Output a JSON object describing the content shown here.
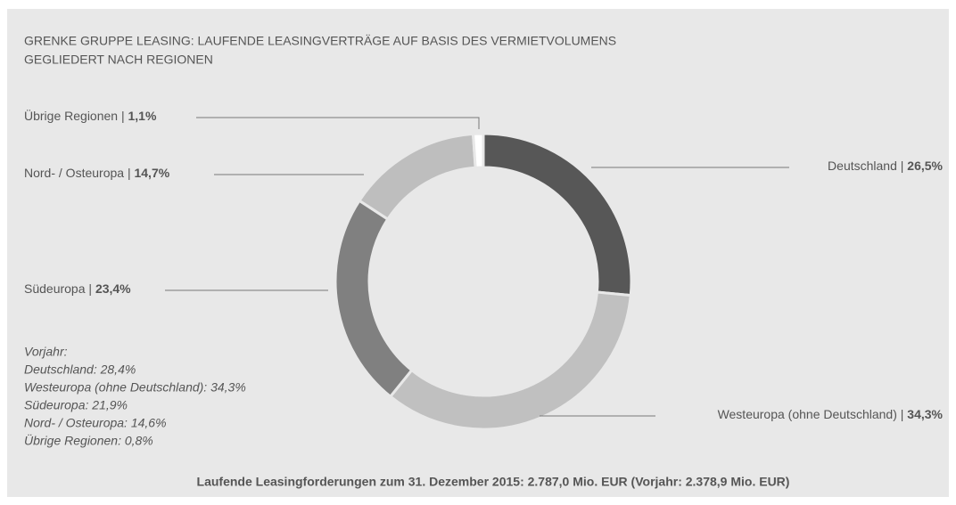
{
  "chart_data": {
    "type": "pie",
    "title": "GRENKE GRUPPE LEASING: LAUFENDE LEASINGVERTRÄGE AUF BASIS DES VERMIETVOLUMENS",
    "subtitle": "GEGLIEDERT NACH REGIONEN",
    "categories": [
      "Deutschland",
      "Westeuropa (ohne Deutschland)",
      "Südeuropa",
      "Nord- / Osteuropa",
      "Übrige Regionen"
    ],
    "values": [
      26.5,
      34.3,
      23.4,
      14.7,
      1.1
    ],
    "value_labels": [
      "26,5%",
      "34,3%",
      "23,4%",
      "14,7%",
      "1,1%"
    ],
    "colors": [
      "#575757",
      "#c0c0c0",
      "#808080",
      "#bebebe",
      "#ffffff"
    ],
    "label_separator": " | ",
    "donut": true,
    "annotations": [
      "Vorjahr:",
      "Deutschland: 28,4%",
      "Westeuropa (ohne Deutschland): 34,3%",
      "Südeuropa: 21,9%",
      "Nord- / Osteuropa: 14,6%",
      "Übrige Regionen: 0,8%"
    ],
    "caption": "Laufende Leasingforderungen zum 31. Dezember 2015: 2.787,0 Mio. EUR (Vorjahr: 2.378,9 Mio. EUR)"
  }
}
